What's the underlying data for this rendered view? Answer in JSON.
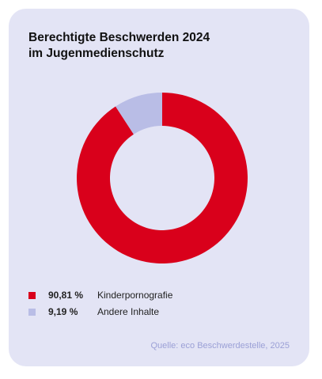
{
  "colors": {
    "card_bg": "#e3e4f5",
    "primary": "#d9001b",
    "secondary": "#b9bde6",
    "source_text": "#9ba0d6"
  },
  "title_lines": [
    "Berechtigte Beschwerden 2024",
    "im Jugenmedienschutz"
  ],
  "source": "Quelle: eco Beschwerdestelle, 2025",
  "legend": [
    {
      "value": "90,81 %",
      "label": "Kinderpornografie",
      "color": "#d9001b"
    },
    {
      "value": "9,19 %",
      "label": "Andere Inhalte",
      "color": "#b9bde6"
    }
  ],
  "chart_data": {
    "type": "pie",
    "title": "Berechtigte Beschwerden 2024 im Jugenmedienschutz",
    "donut": true,
    "slices": [
      {
        "label": "Kinderpornografie",
        "value": 90.81,
        "color": "#d9001b"
      },
      {
        "label": "Andere Inhalte",
        "value": 9.19,
        "color": "#b9bde6"
      }
    ],
    "legend_position": "bottom-left"
  }
}
